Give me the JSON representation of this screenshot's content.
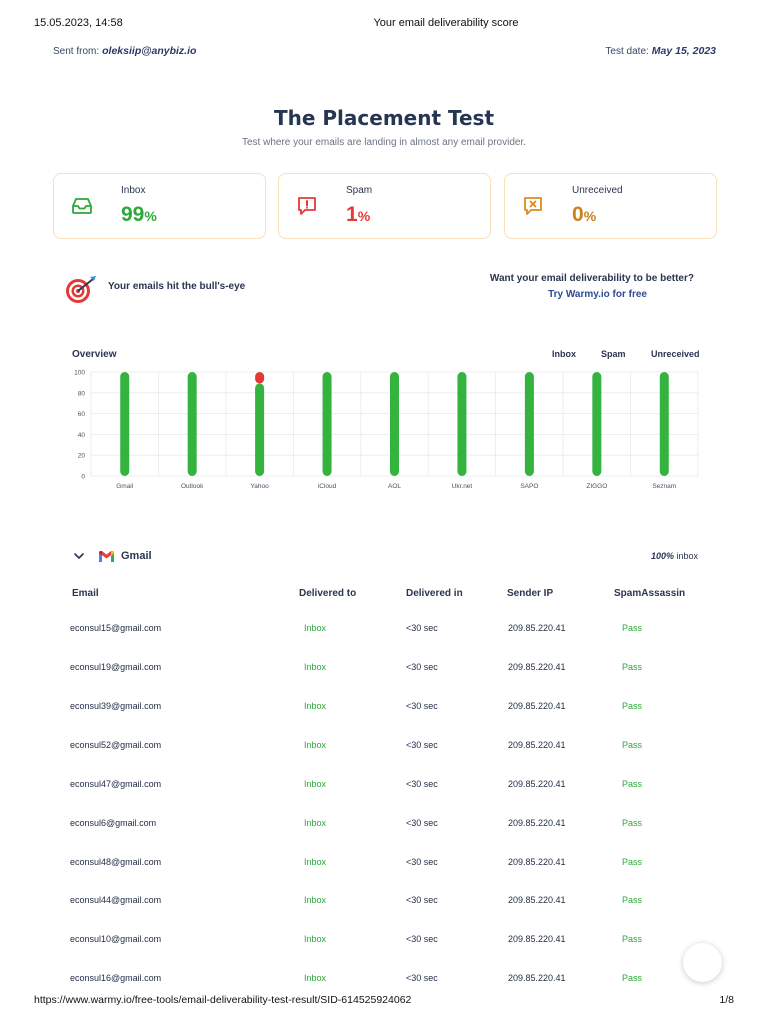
{
  "print_header": {
    "datetime": "15.05.2023, 14:58",
    "title": "Your email deliverability score"
  },
  "print_footer": {
    "url": "https://www.warmy.io/free-tools/email-deliverability-test-result/SID-614525924062",
    "page": "1/8"
  },
  "meta": {
    "sent_from_label": "Sent from:",
    "sent_from_value": "oleksiip@anybiz.io",
    "test_date_label": "Test date:",
    "test_date_value": "May 15, 2023"
  },
  "hero": {
    "title": "The Placement Test",
    "subtitle": "Test where your emails are landing in almost any email provider."
  },
  "cards": [
    {
      "label": "Inbox",
      "value": "99",
      "unit": "%",
      "color": "#2ea83a"
    },
    {
      "label": "Spam",
      "value": "1",
      "unit": "%",
      "color": "#e53935"
    },
    {
      "label": "Unreceived",
      "value": "0",
      "unit": "%",
      "color": "#c9821f"
    }
  ],
  "bullseye": {
    "text": "Your emails hit the bull's-eye"
  },
  "cta": {
    "question": "Want your email deliverability to be better?",
    "link": "Try Warmy.io for free"
  },
  "overview": {
    "title": "Overview",
    "legend": [
      "Inbox",
      "Spam",
      "Unreceived"
    ]
  },
  "chart_data": {
    "type": "bar",
    "title": "Overview",
    "categories": [
      "Gmail",
      "Outlook",
      "Yahoo",
      "iCloud",
      "AOL",
      "Ukr.net",
      "SAPO",
      "ZIGGO",
      "Seznam"
    ],
    "series": [
      {
        "name": "Inbox",
        "color": "#34b33f",
        "values": [
          100,
          100,
          89,
          100,
          100,
          100,
          100,
          100,
          100
        ]
      },
      {
        "name": "Spam",
        "color": "#e53935",
        "values": [
          0,
          0,
          11,
          0,
          0,
          0,
          0,
          0,
          0
        ]
      },
      {
        "name": "Unreceived",
        "color": "#c9821f",
        "values": [
          0,
          0,
          0,
          0,
          0,
          0,
          0,
          0,
          0
        ]
      }
    ],
    "yticks": [
      0,
      20,
      40,
      60,
      80,
      100
    ],
    "ylim": [
      0,
      100
    ],
    "stacked": true,
    "grid": true
  },
  "gmail": {
    "name": "Gmail",
    "percent": "100%",
    "percent_suffix": "inbox",
    "headers": [
      "Email",
      "Delivered to",
      "Delivered in",
      "Sender IP",
      "SpamAssassin"
    ],
    "rows": [
      {
        "email": "econsul15@gmail.com",
        "delivered_to": "Inbox",
        "delivered_in": "<30 sec",
        "ip": "209.85.220.41",
        "spam": "Pass"
      },
      {
        "email": "econsul19@gmail.com",
        "delivered_to": "Inbox",
        "delivered_in": "<30 sec",
        "ip": "209.85.220.41",
        "spam": "Pass"
      },
      {
        "email": "econsul39@gmail.com",
        "delivered_to": "Inbox",
        "delivered_in": "<30 sec",
        "ip": "209.85.220.41",
        "spam": "Pass"
      },
      {
        "email": "econsul52@gmail.com",
        "delivered_to": "Inbox",
        "delivered_in": "<30 sec",
        "ip": "209.85.220.41",
        "spam": "Pass"
      },
      {
        "email": "econsul47@gmail.com",
        "delivered_to": "Inbox",
        "delivered_in": "<30 sec",
        "ip": "209.85.220.41",
        "spam": "Pass"
      },
      {
        "email": "econsul6@gmail.com",
        "delivered_to": "Inbox",
        "delivered_in": "<30 sec",
        "ip": "209.85.220.41",
        "spam": "Pass"
      },
      {
        "email": "econsul48@gmail.com",
        "delivered_to": "Inbox",
        "delivered_in": "<30 sec",
        "ip": "209.85.220.41",
        "spam": "Pass"
      },
      {
        "email": "econsul44@gmail.com",
        "delivered_to": "Inbox",
        "delivered_in": "<30 sec",
        "ip": "209.85.220.41",
        "spam": "Pass"
      },
      {
        "email": "econsul10@gmail.com",
        "delivered_to": "Inbox",
        "delivered_in": "<30 sec",
        "ip": "209.85.220.41",
        "spam": "Pass"
      },
      {
        "email": "econsul16@gmail.com",
        "delivered_to": "Inbox",
        "delivered_in": "<30 sec",
        "ip": "209.85.220.41",
        "spam": "Pass"
      }
    ]
  }
}
